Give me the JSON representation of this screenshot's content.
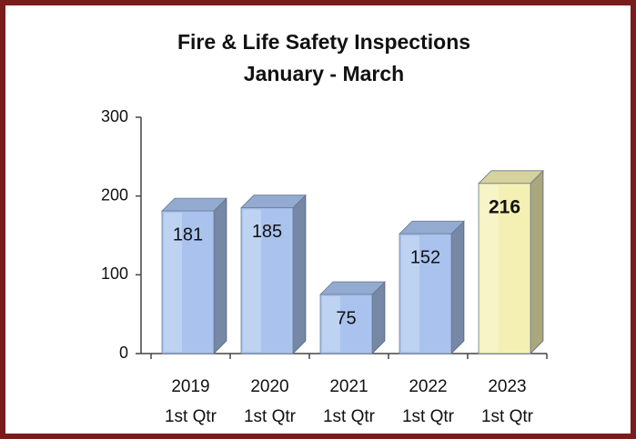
{
  "chart_data": {
    "type": "bar3d",
    "title": "Fire & Life Safety Inspections",
    "subtitle": "January - March",
    "categories": [
      [
        "2019",
        "1st Qtr"
      ],
      [
        "2020",
        "1st Qtr"
      ],
      [
        "2021",
        "1st Qtr"
      ],
      [
        "2022",
        "1st Qtr"
      ],
      [
        "2023",
        "1st Qtr"
      ]
    ],
    "values": [
      181,
      185,
      75,
      152,
      216
    ],
    "colors": [
      "#a9c3ee",
      "#a9c3ee",
      "#a9c3ee",
      "#a9c3ee",
      "#f4f0b4"
    ],
    "value_label_bold": [
      false,
      false,
      false,
      false,
      true
    ],
    "ylim": [
      0,
      300
    ],
    "yticks": [
      0,
      100,
      200,
      300
    ]
  }
}
